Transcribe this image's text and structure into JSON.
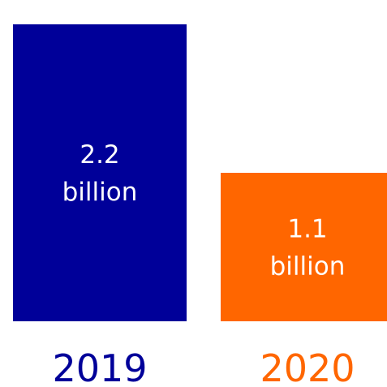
{
  "chart_data": {
    "type": "bar",
    "categories": [
      "2019",
      "2020"
    ],
    "values": [
      2.2,
      1.1
    ],
    "unit": "billion",
    "data_labels": [
      [
        "2.2",
        "billion"
      ],
      [
        "1.1",
        "billion"
      ]
    ],
    "colors": [
      "#000099",
      "#ff6600"
    ],
    "title": "",
    "xlabel": "",
    "ylabel": "",
    "ylim": [
      0,
      2.2
    ],
    "grid": false
  }
}
